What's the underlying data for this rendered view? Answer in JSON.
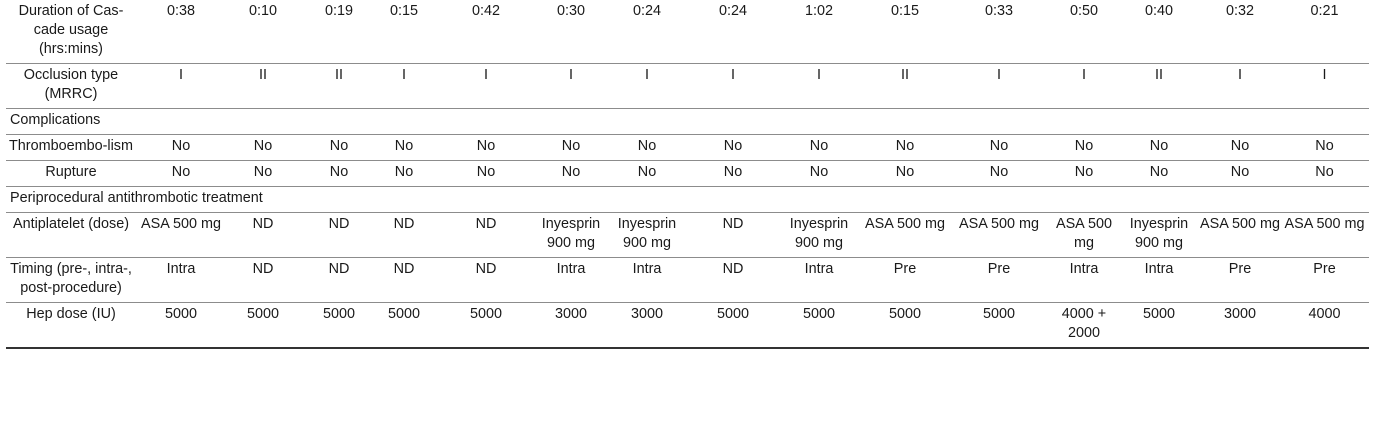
{
  "table": {
    "rows": [
      {
        "type": "data",
        "label": "Duration of Cas-cade usage (hrs:mins)",
        "cells": [
          "0:38",
          "0:10",
          "0:19",
          "0:15",
          "0:42",
          "0:30",
          "0:24",
          "0:24",
          "1:02",
          "0:15",
          "0:33",
          "0:50",
          "0:40",
          "0:32",
          "0:21"
        ]
      },
      {
        "type": "data",
        "label": "Occlusion type (MRRC)",
        "cells": [
          "I",
          "II",
          "II",
          "I",
          "I",
          "I",
          "I",
          "I",
          "I",
          "II",
          "I",
          "I",
          "II",
          "I",
          "I"
        ]
      },
      {
        "type": "section",
        "label": "Complications"
      },
      {
        "type": "data",
        "label": "Thromboembo-lism",
        "cells": [
          "No",
          "No",
          "No",
          "No",
          "No",
          "No",
          "No",
          "No",
          "No",
          "No",
          "No",
          "No",
          "No",
          "No",
          "No"
        ]
      },
      {
        "type": "data",
        "label": "Rupture",
        "cells": [
          "No",
          "No",
          "No",
          "No",
          "No",
          "No",
          "No",
          "No",
          "No",
          "No",
          "No",
          "No",
          "No",
          "No",
          "No"
        ]
      },
      {
        "type": "section",
        "label": "Periprocedural antithrombotic treatment"
      },
      {
        "type": "data",
        "label": "Antiplatelet (dose)",
        "cells": [
          "ASA 500 mg",
          "ND",
          "ND",
          "ND",
          "ND",
          "Inyesprin 900 mg",
          "Inyesprin 900 mg",
          "ND",
          "Inyesprin 900 mg",
          "ASA 500 mg",
          "ASA 500 mg",
          "ASA 500 mg",
          "Inyesprin 900 mg",
          "ASA 500 mg",
          "ASA 500 mg"
        ]
      },
      {
        "type": "data",
        "label": "Timing (pre-, intra-, post-procedure)",
        "cells": [
          "Intra",
          "ND",
          "ND",
          "ND",
          "ND",
          "Intra",
          "Intra",
          "ND",
          "Intra",
          "Pre",
          "Pre",
          "Intra",
          "Intra",
          "Pre",
          "Pre"
        ]
      },
      {
        "type": "data",
        "label": "Hep dose (IU)",
        "cells": [
          "5000",
          "5000",
          "5000",
          "5000",
          "5000",
          "3000",
          "3000",
          "5000",
          "5000",
          "5000",
          "5000",
          "4000 + 2000",
          "5000",
          "3000",
          "4000"
        ]
      }
    ]
  }
}
